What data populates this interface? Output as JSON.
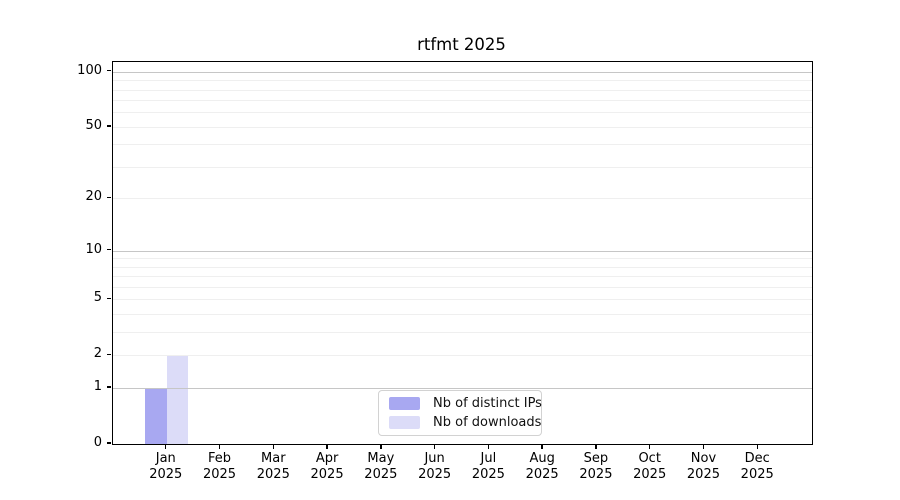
{
  "chart_data": {
    "type": "bar",
    "title": "rtfmt 2025",
    "categories": [
      "Jan",
      "Feb",
      "Mar",
      "Apr",
      "May",
      "Jun",
      "Jul",
      "Aug",
      "Sep",
      "Oct",
      "Nov",
      "Dec"
    ],
    "x_year_label": "2025",
    "series": [
      {
        "name": "Nb of distinct IPs",
        "color": "#a8a8f1",
        "values": [
          1,
          0,
          0,
          0,
          0,
          0,
          0,
          0,
          0,
          0,
          0,
          0
        ]
      },
      {
        "name": "Nb of downloads",
        "color": "#dcdcf8",
        "values": [
          2,
          0,
          0,
          0,
          0,
          0,
          0,
          0,
          0,
          0,
          0,
          0
        ]
      }
    ],
    "xlabel": "",
    "ylabel": "",
    "y_axis": {
      "scale": "log1p",
      "ylim": [
        0,
        113
      ],
      "labeled_ticks": [
        0,
        1,
        2,
        5,
        10,
        20,
        50,
        100
      ],
      "major_gridlines": [
        1,
        10,
        100
      ],
      "minor_gridlines": [
        2,
        3,
        4,
        5,
        6,
        7,
        8,
        9,
        20,
        30,
        40,
        50,
        60,
        70,
        80,
        90
      ]
    },
    "grid": "horizontal",
    "legend": {
      "position": "lower-center"
    }
  }
}
